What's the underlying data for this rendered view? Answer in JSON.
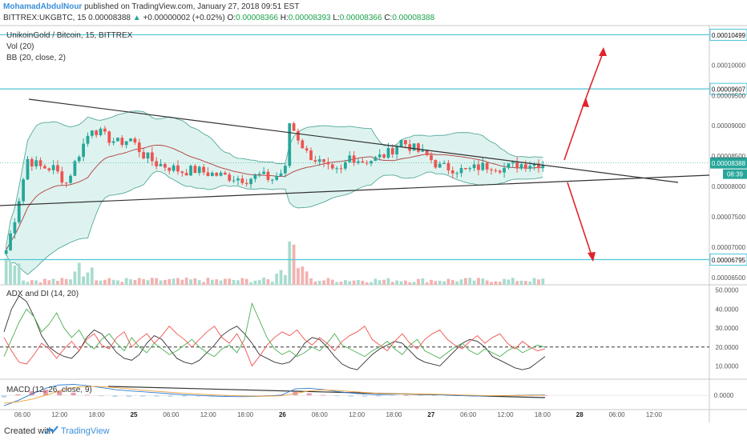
{
  "header": {
    "author": "MohamadAbdulNour",
    "published": "published on TradingView.com, January 27, 2018 09:51 EST",
    "symbol": "BITTREX:UKGBTC, 15",
    "last": "0.00008388",
    "arrow": "▲",
    "change": "+0.00000002 (+0.02%)",
    "o_label": "O:",
    "o": "0.00008366",
    "h_label": "H:",
    "h": "0.00008393",
    "l_label": "L:",
    "l": "0.00008366",
    "c_label": "C:",
    "c": "0.00008388"
  },
  "legend": {
    "title": "UnikoinGold / Bitcoin, 15, BITTREX",
    "vol": "Vol (20)",
    "bb": "BB (20, close, 2)",
    "adx": "ADX and DI (14, 20)",
    "macd": "MACD (12, 26, close, 9)"
  },
  "footer": {
    "created": "Created with",
    "brand": "TradingView"
  },
  "colors": {
    "accent": "#4dc6d8",
    "up": "#26a69a",
    "down": "#ef5350",
    "bb_fill": "#d3efea",
    "bb_line": "#55a99a",
    "trend": "#333333",
    "arrow": "#e0242b",
    "adx": "#333333",
    "di_plus": "#4caf50",
    "di_minus": "#ef5350"
  },
  "chart_data": [
    {
      "type": "candlestick",
      "panel": "price",
      "y_ticks": [
        "0.00010499",
        "0.00010000",
        "0.00009500",
        "0.00009000",
        "0.00008500",
        "0.00008000",
        "0.00007500",
        "0.00007000",
        "0.00006500"
      ],
      "ylim": [
        6.38e-05,
        0.0001065
      ],
      "levels": [
        {
          "value": 0.00010499,
          "label": "0.00010499"
        },
        {
          "value": 9.607e-05,
          "label": "0.00009607"
        },
        {
          "value": 6.795e-05,
          "label": "0.00006795"
        }
      ],
      "current": {
        "value": 8.388e-05,
        "label": "0.00008388",
        "countdown": "08:39"
      },
      "x_ticks": [
        "06:00",
        "12:00",
        "18:00",
        "25",
        "06:00",
        "12:00",
        "18:00",
        "26",
        "06:00",
        "12:00",
        "18:00",
        "27",
        "06:00",
        "12:00",
        "18:00",
        "28",
        "06:00",
        "12:00"
      ],
      "close_path": [
        [
          0,
          6.95e-05
        ],
        [
          2,
          7.48e-05
        ],
        [
          5,
          8.45e-05
        ],
        [
          8,
          8.32e-05
        ],
        [
          11,
          8.3e-05
        ],
        [
          14,
          8.06e-05
        ],
        [
          17,
          8.55e-05
        ],
        [
          20,
          8.98e-05
        ],
        [
          23,
          8.82e-05
        ],
        [
          26,
          8.72e-05
        ],
        [
          29,
          8.78e-05
        ],
        [
          32,
          8.52e-05
        ],
        [
          35,
          8.38e-05
        ],
        [
          38,
          8.32e-05
        ],
        [
          41,
          8.25e-05
        ],
        [
          44,
          8.27e-05
        ],
        [
          47,
          8.22e-05
        ],
        [
          50,
          8.18e-05
        ],
        [
          53,
          8.15e-05
        ],
        [
          56,
          8.12e-05
        ],
        [
          59,
          8.18e-05
        ],
        [
          62,
          8.12e-05
        ],
        [
          65,
          8.28e-05
        ],
        [
          66,
          9.05e-05
        ],
        [
          68,
          8.8e-05
        ],
        [
          70,
          8.55e-05
        ],
        [
          73,
          8.4e-05
        ],
        [
          76,
          8.22e-05
        ],
        [
          78,
          8.25e-05
        ],
        [
          80,
          8.5e-05
        ],
        [
          83,
          8.42e-05
        ],
        [
          86,
          8.45e-05
        ],
        [
          89,
          8.55e-05
        ],
        [
          92,
          8.75e-05
        ],
        [
          95,
          8.62e-05
        ],
        [
          98,
          8.5e-05
        ],
        [
          101,
          8.32e-05
        ],
        [
          104,
          8.3e-05
        ],
        [
          107,
          8.25e-05
        ],
        [
          110,
          8.32e-05
        ],
        [
          113,
          8.35e-05
        ],
        [
          116,
          8.3e-05
        ],
        [
          119,
          8.36e-05
        ],
        [
          122,
          8.38e-05
        ]
      ],
      "volume_ylim": [
        0,
        1
      ]
    },
    {
      "type": "line",
      "panel": "adx",
      "title": "ADX and DI (14, 20)",
      "y_ticks": [
        "50.0000",
        "40.0000",
        "30.0000",
        "20.0000",
        "10.0000"
      ],
      "ylim": [
        3,
        52
      ],
      "threshold": 20,
      "series": [
        {
          "name": "ADX",
          "values": [
            28,
            40,
            47,
            44,
            36,
            26,
            20,
            17,
            15,
            14,
            18,
            25,
            29,
            27,
            22,
            17,
            14,
            13,
            16,
            22,
            26,
            24,
            19,
            14,
            12,
            11,
            13,
            17,
            21,
            26,
            29,
            31,
            27,
            22,
            16,
            14,
            12,
            11,
            12,
            16,
            22,
            25,
            24,
            20,
            15,
            11,
            9,
            8,
            12,
            16,
            19,
            21,
            23,
            22,
            18,
            14,
            12,
            11,
            10,
            14,
            18,
            22,
            24,
            23,
            20,
            15,
            13,
            11,
            9,
            8,
            9,
            12,
            15
          ]
        },
        {
          "name": "+DI",
          "values": [
            15,
            24,
            33,
            40,
            36,
            28,
            32,
            38,
            30,
            25,
            29,
            22,
            19,
            24,
            27,
            22,
            18,
            25,
            20,
            17,
            22,
            19,
            16,
            18,
            21,
            24,
            20,
            17,
            15,
            19,
            21,
            17,
            24,
            43,
            34,
            25,
            19,
            16,
            18,
            15,
            17,
            20,
            18,
            22,
            27,
            21,
            19,
            17,
            15,
            18,
            20,
            23,
            19,
            16,
            21,
            24,
            18,
            16,
            14,
            17,
            20,
            22,
            18,
            16,
            19,
            17,
            15,
            18,
            20,
            17,
            19,
            21,
            20
          ]
        },
        {
          "name": "-DI",
          "values": [
            25,
            18,
            12,
            11,
            16,
            22,
            19,
            14,
            19,
            23,
            18,
            24,
            27,
            21,
            19,
            25,
            28,
            20,
            24,
            27,
            22,
            26,
            31,
            27,
            24,
            20,
            24,
            28,
            31,
            25,
            22,
            27,
            20,
            10,
            15,
            21,
            25,
            28,
            26,
            29,
            24,
            21,
            25,
            22,
            18,
            23,
            26,
            28,
            31,
            24,
            21,
            18,
            23,
            27,
            22,
            19,
            24,
            27,
            29,
            24,
            21,
            19,
            23,
            26,
            22,
            25,
            27,
            22,
            19,
            23,
            20,
            18,
            19
          ]
        }
      ]
    },
    {
      "type": "line",
      "panel": "macd",
      "title": "MACD (12, 26, close, 9)",
      "y_ticks": [
        "0.0000"
      ],
      "ylim": [
        -1,
        1
      ],
      "series": [
        {
          "name": "MACD",
          "values": [
            -0.8,
            -0.4,
            0.1,
            0.55,
            0.8,
            0.85,
            0.75,
            0.6,
            0.45,
            0.35,
            0.28,
            0.2,
            0.12,
            0.05,
            0.0,
            -0.05,
            -0.08,
            -0.1,
            -0.08,
            -0.05,
            0.02,
            0.5,
            0.55,
            0.45,
            0.3,
            0.18,
            0.1,
            0.05,
            0.08,
            0.12,
            0.1,
            0.06,
            0.02,
            -0.02,
            -0.05,
            -0.04,
            -0.02,
            0.0,
            0.02,
            0.03
          ]
        },
        {
          "name": "Signal",
          "values": [
            -0.6,
            -0.5,
            -0.3,
            0.0,
            0.35,
            0.6,
            0.7,
            0.68,
            0.6,
            0.5,
            0.4,
            0.32,
            0.24,
            0.16,
            0.1,
            0.04,
            0.0,
            -0.04,
            -0.06,
            -0.06,
            -0.03,
            0.15,
            0.35,
            0.42,
            0.38,
            0.3,
            0.22,
            0.15,
            0.12,
            0.12,
            0.11,
            0.09,
            0.06,
            0.03,
            0.0,
            -0.02,
            -0.02,
            -0.01,
            0.0,
            0.01
          ]
        }
      ]
    }
  ]
}
